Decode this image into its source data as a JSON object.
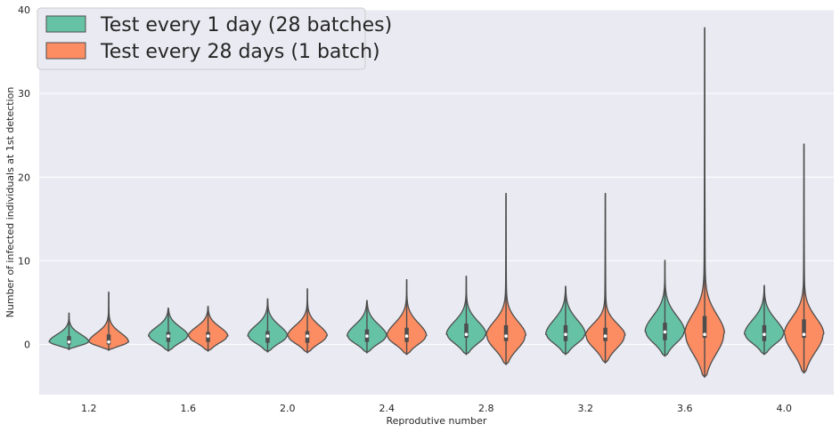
{
  "chart_data": {
    "type": "violin",
    "title": "",
    "xlabel": "Reprodutive number",
    "ylabel": "Number of infected individuals at 1st detection",
    "categories": [
      "1.2",
      "1.6",
      "2.0",
      "2.4",
      "2.8",
      "3.2",
      "3.6",
      "4.0"
    ],
    "ylim": [
      -6,
      40
    ],
    "yticks": [
      0,
      10,
      20,
      30,
      40
    ],
    "grid": true,
    "legend_position": "top-left",
    "colors": {
      "background": "#eaeaf2",
      "grid": "#ffffff",
      "outline": "#4d4d4d"
    },
    "series": [
      {
        "name": "Test every 1 day (28 batches)",
        "color": "#66c2a5",
        "summary": [
          {
            "min": -0.6,
            "q1": 0.0,
            "median": 0.3,
            "q3": 1.0,
            "max": 3.8
          },
          {
            "min": -0.8,
            "q1": 0.3,
            "median": 1.0,
            "q3": 1.5,
            "max": 4.4
          },
          {
            "min": -0.9,
            "q1": 0.2,
            "median": 1.0,
            "q3": 1.6,
            "max": 5.5
          },
          {
            "min": -1.0,
            "q1": 0.3,
            "median": 1.0,
            "q3": 1.8,
            "max": 5.3
          },
          {
            "min": -1.2,
            "q1": 0.8,
            "median": 1.2,
            "q3": 2.5,
            "max": 8.2
          },
          {
            "min": -1.2,
            "q1": 0.4,
            "median": 1.2,
            "q3": 2.3,
            "max": 7.0
          },
          {
            "min": -1.4,
            "q1": 0.5,
            "median": 1.5,
            "q3": 2.6,
            "max": 10.1
          },
          {
            "min": -1.2,
            "q1": 0.4,
            "median": 1.2,
            "q3": 2.3,
            "max": 7.1
          }
        ]
      },
      {
        "name": "Test every 28 days (1 batch)",
        "color": "#fc8d62",
        "summary": [
          {
            "min": -0.7,
            "q1": 0.0,
            "median": 0.3,
            "q3": 1.2,
            "max": 6.3
          },
          {
            "min": -0.8,
            "q1": 0.3,
            "median": 1.0,
            "q3": 1.5,
            "max": 4.6
          },
          {
            "min": -1.0,
            "q1": 0.2,
            "median": 1.0,
            "q3": 1.6,
            "max": 6.7
          },
          {
            "min": -1.2,
            "q1": 0.3,
            "median": 1.0,
            "q3": 2.0,
            "max": 7.8
          },
          {
            "min": -2.4,
            "q1": 0.4,
            "median": 1.0,
            "q3": 2.3,
            "max": 18.1
          },
          {
            "min": -2.2,
            "q1": 0.4,
            "median": 1.0,
            "q3": 2.0,
            "max": 18.1
          },
          {
            "min": -3.9,
            "q1": 0.8,
            "median": 1.2,
            "q3": 3.4,
            "max": 37.9
          },
          {
            "min": -3.4,
            "q1": 0.8,
            "median": 1.2,
            "q3": 3.0,
            "max": 24.0
          }
        ]
      }
    ]
  }
}
